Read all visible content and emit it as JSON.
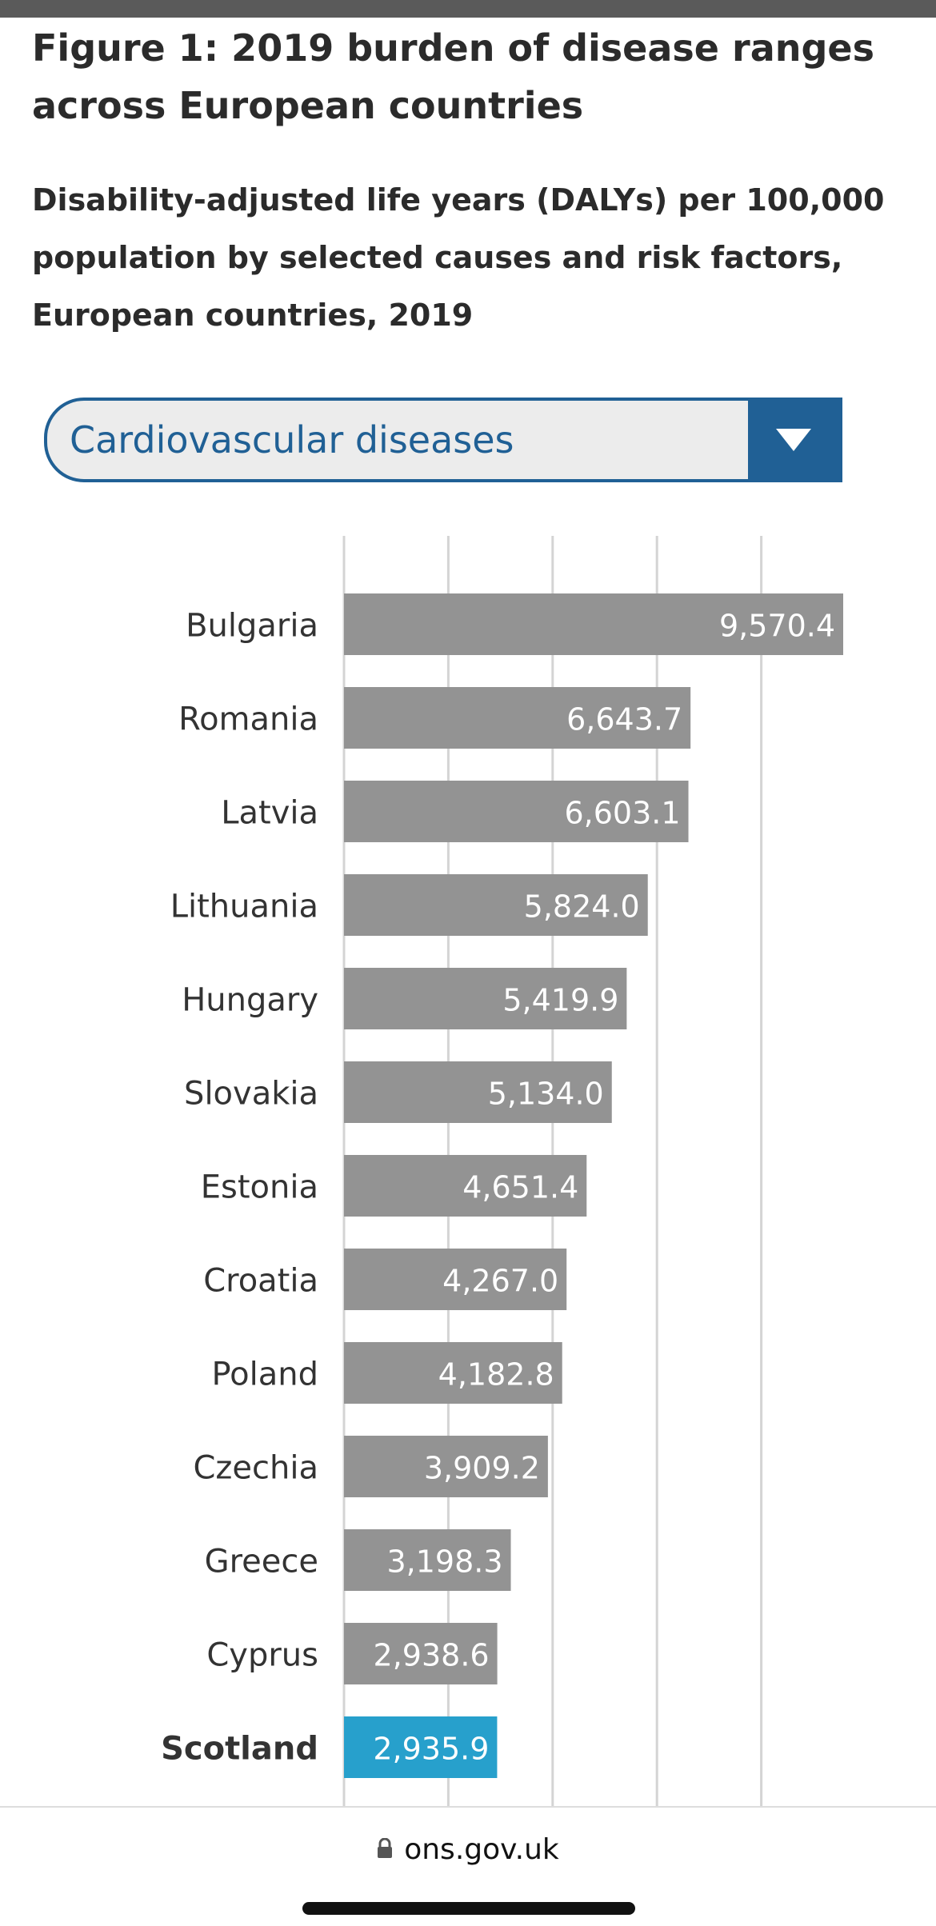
{
  "figure": {
    "title": "Figure 1: 2019 burden of disease ranges across European countries",
    "subtitle": "Disability-adjusted life years (DALYs) per 100,000 population by selected causes and risk factors, European countries, 2019"
  },
  "dropdown": {
    "selected": "Cardiovascular diseases",
    "icon": "triangle-down-icon"
  },
  "browser": {
    "url": "ons.gov.uk",
    "lock_icon": "lock-icon"
  },
  "colors": {
    "bar_default": "#939393",
    "bar_highlight": "#27a0cc",
    "accent": "#206095",
    "gridline": "#d4d4d4"
  },
  "chart_data": {
    "type": "bar",
    "orientation": "horizontal",
    "categories": [
      "Bulgaria",
      "Romania",
      "Latvia",
      "Lithuania",
      "Hungary",
      "Slovakia",
      "Estonia",
      "Croatia",
      "Poland",
      "Czechia",
      "Greece",
      "Cyprus",
      "Scotland"
    ],
    "values": [
      9570.4,
      6643.7,
      6603.1,
      5824.0,
      5419.9,
      5134.0,
      4651.4,
      4267.0,
      4182.8,
      3909.2,
      3198.3,
      2938.6,
      2935.9
    ],
    "value_labels": [
      "9,570.4",
      "6,643.7",
      "6,603.1",
      "5,824.0",
      "5,419.9",
      "5,134.0",
      "4,651.4",
      "4,267.0",
      "4,182.8",
      "3,909.2",
      "3,198.3",
      "2,938.6",
      "2,935.9"
    ],
    "highlight": "Scotland",
    "xlim": [
      0,
      10000
    ],
    "gridlines": [
      0,
      2000,
      4000,
      6000,
      8000
    ],
    "grid": true,
    "legend": false
  }
}
